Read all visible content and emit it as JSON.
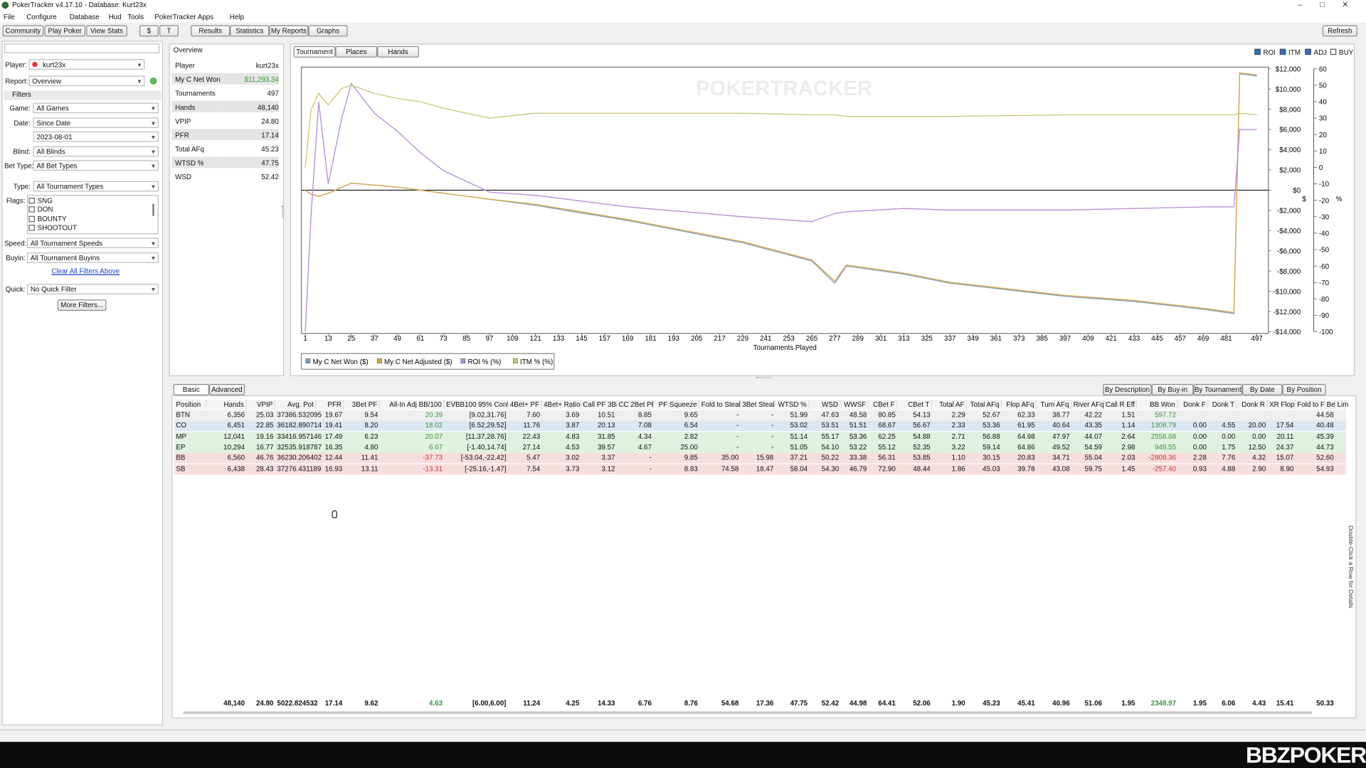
{
  "window": {
    "title": "PokerTracker v4.17.10 - Database: Kurt23x"
  },
  "menu": [
    "File",
    "Configure",
    "Database",
    "Hud",
    "Tools",
    "PokerTracker Apps",
    "Help"
  ],
  "toolbar": {
    "left": [
      "Community",
      "Play Poker",
      "View Stats"
    ],
    "currency": [
      "$",
      "T"
    ],
    "tabs": [
      "Results",
      "Statistics",
      "My Reports",
      "Graphs"
    ],
    "refresh": "Refresh"
  },
  "filters": {
    "player_label": "Player:",
    "player": "kurt23x",
    "report_label": "Report:",
    "report": "Overview",
    "section": "Filters",
    "fields": [
      {
        "label": "Game:",
        "value": "All Games"
      },
      {
        "label": "Date:",
        "value": "Since Date"
      },
      {
        "value": "2023-08-01"
      },
      {
        "label": "Blind:",
        "value": "All Blinds"
      },
      {
        "label": "Bet Type:",
        "value": "All Bet Types"
      },
      {
        "label": "Type:",
        "value": "All Tournament Types"
      }
    ],
    "flags_label": "Flags:",
    "flags": [
      "SNG",
      "DON",
      "BOUNTY",
      "SHOOTOUT"
    ],
    "fields2": [
      {
        "label": "Speed:",
        "value": "All Tournament Speeds"
      },
      {
        "label": "Buyin:",
        "value": "All Tournament Buyins"
      }
    ],
    "clear": "Clear All Filters Above",
    "quick_label": "Quick:",
    "quick": "No Quick Filter",
    "more": "More Filters..."
  },
  "overview": {
    "title": "Overview",
    "rows": [
      [
        "Player",
        "kurt23x"
      ],
      [
        "My C Net Won",
        "$11,293.34"
      ],
      [
        "Tournaments",
        "497"
      ],
      [
        "Hands",
        "48,140"
      ],
      [
        "VPIP",
        "24.80"
      ],
      [
        "PFR",
        "17.14"
      ],
      [
        "Total AFq",
        "45.23"
      ],
      [
        "WTSD %",
        "47.75"
      ],
      [
        "WSD",
        "52.42"
      ]
    ]
  },
  "graph_tabs": [
    "Tournament",
    "Places",
    "Hands"
  ],
  "graph_options": [
    {
      "label": "ROI",
      "checked": true
    },
    {
      "label": "ITM",
      "checked": true
    },
    {
      "label": "ADJ",
      "checked": true
    },
    {
      "label": "BUY",
      "checked": false
    }
  ],
  "chart_data": {
    "type": "line",
    "watermark": "POKERTRACKER",
    "x_label": "Tournaments Played",
    "y_label": "$",
    "y2_label": "%",
    "xlim": [
      -1,
      503
    ],
    "xticks": [
      1,
      13,
      25,
      37,
      49,
      61,
      73,
      85,
      97,
      109,
      121,
      133,
      145,
      157,
      169,
      181,
      193,
      205,
      217,
      229,
      241,
      253,
      265,
      277,
      289,
      301,
      313,
      325,
      337,
      349,
      361,
      373,
      385,
      397,
      409,
      421,
      433,
      445,
      457,
      469,
      481,
      497
    ],
    "ylim": [
      -14000,
      12000
    ],
    "yticks": [
      {
        "value": -14000,
        "label": "-$14,000"
      },
      {
        "value": -12000,
        "label": "-$12,000"
      },
      {
        "value": -10000,
        "label": "-$10,000"
      },
      {
        "value": -8000,
        "label": "-$8,000"
      },
      {
        "value": -6000,
        "label": "-$6,000"
      },
      {
        "value": -4000,
        "label": "-$4,000"
      },
      {
        "value": -2000,
        "label": "-$2,000"
      },
      {
        "value": 0,
        "label": "$0"
      },
      {
        "value": 2000,
        "label": "$2,000"
      },
      {
        "value": 4000,
        "label": "$4,000"
      },
      {
        "value": 6000,
        "label": "$6,000"
      },
      {
        "value": 8000,
        "label": "$8,000"
      },
      {
        "value": 10000,
        "label": "$10,000"
      },
      {
        "value": 12000,
        "label": "$12,000"
      }
    ],
    "y2lim": [
      -100,
      60
    ],
    "y2ticks": [
      -100,
      -90,
      -80,
      -70,
      -60,
      -50,
      -40,
      -30,
      -20,
      -10,
      0,
      10,
      20,
      30,
      40,
      50,
      60
    ],
    "x": [
      1,
      4,
      8,
      13,
      20,
      25,
      37,
      49,
      61,
      73,
      97,
      121,
      169,
      229,
      265,
      277,
      283,
      313,
      337,
      397,
      433,
      470,
      485,
      488,
      497
    ],
    "series": [
      {
        "name": "My C Net Won ($)",
        "color": "#7f9fba",
        "values": [
          0,
          -400,
          -600,
          -300,
          300,
          700,
          500,
          300,
          0,
          -300,
          -900,
          -1500,
          -3000,
          -5200,
          -7000,
          -9200,
          -7500,
          -8300,
          -9200,
          -10500,
          -11000,
          -11800,
          -12200,
          11500,
          11293
        ]
      },
      {
        "name": "My C Net Adjusted ($)",
        "color": "#d9a84e",
        "values": [
          0,
          -400,
          -600,
          -300,
          300,
          700,
          500,
          300,
          0,
          -300,
          -900,
          -1400,
          -2900,
          -5100,
          -6900,
          -9000,
          -7400,
          -8200,
          -9100,
          -10400,
          -10900,
          -11700,
          -12100,
          11600,
          11400
        ]
      },
      {
        "name": "ROI % (%)",
        "color": "#b68fd6",
        "axis": "y2",
        "values": [
          -100,
          -30,
          40,
          -10,
          30,
          51,
          33,
          22,
          9,
          -2,
          -15,
          -17,
          -24,
          -30,
          -33,
          -28,
          -27,
          -25,
          -26,
          -26,
          -25,
          -24,
          -24,
          23,
          23
        ]
      },
      {
        "name": "ITM % (%)",
        "color": "#c9c777",
        "axis": "y2",
        "values": [
          0,
          35,
          45,
          38,
          48,
          50,
          45,
          42,
          40,
          36,
          30,
          33,
          33,
          33,
          32,
          32,
          31,
          31,
          31,
          32,
          32,
          32,
          32,
          33,
          32
        ]
      }
    ]
  },
  "table_tabs": [
    "Basic",
    "Advanced"
  ],
  "group_tabs": [
    "By Description",
    "By Buy-in",
    "By Tournament",
    "By Date",
    "By Position"
  ],
  "table": {
    "headers": [
      "Position",
      "Hands",
      "VPIP",
      "Avg. Pot",
      "PFR",
      "3Bet PF",
      "All-In Adj BB/100",
      "EVBB100 95% Conf.",
      "4Bet+ PF",
      "4Bet+ Ratio",
      "Call PF 3Bet",
      "CC 2Bet PF",
      "PF Squeeze",
      "Fold to Steal",
      "3Bet Steal",
      "WTSD %",
      "WSD",
      "WWSF",
      "CBet F",
      "CBet T",
      "Total AF",
      "Total AFq",
      "Flop AFq",
      "Turn AFq",
      "River AFq",
      "Call R Eff",
      "BB Won",
      "Donk F",
      "Donk T",
      "Donk R",
      "XR Flop",
      "Fold to F Bet",
      "Lim"
    ],
    "row_colors": [
      "#efefef",
      "#dce7f4",
      "#e0f1df",
      "#e0f1df",
      "#f7dede",
      "#f7dede"
    ],
    "rows": [
      [
        "BTN",
        "6,356",
        "25.03",
        "37386.532095",
        "19.67",
        "9.54",
        "20.39",
        "[9.02,31.76]",
        "7.60",
        "3.69",
        "10.51",
        "8.85",
        "9.65",
        "-",
        "-",
        "51.99",
        "47.63",
        "48.58",
        "80.85",
        "54.13",
        "2.29",
        "52.67",
        "62.33",
        "38.77",
        "42.22",
        "1.51",
        "597.72",
        null,
        null,
        null,
        null,
        "44.58"
      ],
      [
        "CO",
        "6,451",
        "22.85",
        "36182.890714",
        "19.41",
        "8.20",
        "18.02",
        "[6.52,29.52]",
        "11.76",
        "3.87",
        "20.13",
        "7.08",
        "6.54",
        "-",
        "-",
        "53.02",
        "53.51",
        "51.51",
        "68.67",
        "56.67",
        "2.33",
        "53.36",
        "61.95",
        "40.64",
        "43.35",
        "1.14",
        "1308.79",
        "0.00",
        "4.55",
        "20.00",
        "17.54",
        "40.48"
      ],
      [
        "MP",
        "12,041",
        "19.16",
        "33416.957146",
        "17.49",
        "6.23",
        "20.07",
        "[11.37,28.76]",
        "22.43",
        "4.83",
        "31.85",
        "4.34",
        "2.82",
        "-",
        "-",
        "51.14",
        "55.17",
        "53.36",
        "62.25",
        "54.88",
        "2.71",
        "56.88",
        "64.98",
        "47.97",
        "44.07",
        "2.64",
        "2558.68",
        "0.00",
        "0.00",
        "0.00",
        "20.11",
        "45.39"
      ],
      [
        "EP",
        "10,294",
        "16.77",
        "32535.918787",
        "16.35",
        "4.80",
        "6.67",
        "[-1.40,14.74]",
        "27.14",
        "4.53",
        "39.57",
        "4.67",
        "25.00",
        "-",
        "-",
        "51.05",
        "54.10",
        "53.22",
        "55.12",
        "52.35",
        "3.22",
        "59.14",
        "64.86",
        "49.52",
        "54.59",
        "2.98",
        "949.55",
        "0.00",
        "1.75",
        "12.50",
        "24.37",
        "44.73"
      ],
      [
        "BB",
        "6,560",
        "46.76",
        "36230.206402",
        "12.44",
        "11.41",
        "-37.73",
        "[-53.04,-22.42]",
        "5.47",
        "3.02",
        "3.37",
        "-",
        "9.85",
        "35.00",
        "15.98",
        "37.21",
        "50.22",
        "33.38",
        "56.31",
        "53.85",
        "1.10",
        "30.15",
        "20.83",
        "34.71",
        "55.04",
        "2.03",
        "-2808.36",
        "2.28",
        "7.76",
        "4.32",
        "15.07",
        "52.60"
      ],
      [
        "SB",
        "6,438",
        "28.43",
        "37276.431189",
        "16.93",
        "13.11",
        "-13.31",
        "[-25.16,-1.47]",
        "7.54",
        "3.73",
        "3.12",
        "-",
        "8.83",
        "74.58",
        "18.47",
        "58.04",
        "54.30",
        "46.79",
        "72.90",
        "48.44",
        "1.86",
        "45.03",
        "39.78",
        "43.08",
        "59.75",
        "1.45",
        "-257.40",
        "0.93",
        "4.88",
        "2.90",
        "8.90",
        "54.93"
      ]
    ],
    "totals": [
      null,
      "48,140",
      "24.80",
      "5022.824532",
      "17.14",
      "9.62",
      "4.63",
      "[6.00,6.00]",
      "11.24",
      "4.25",
      "14.33",
      "6.76",
      "8.76",
      "54.68",
      "17.36",
      "47.75",
      "52.42",
      "44.98",
      "64.41",
      "52.06",
      "1.90",
      "45.23",
      "45.41",
      "40.96",
      "51.06",
      "1.95",
      "2348.97",
      "1.95",
      "6.06",
      "4.43",
      "15.41",
      "50.33"
    ]
  },
  "side_note": "Double-Click a Row for Details",
  "branding": "BBZPOKER"
}
